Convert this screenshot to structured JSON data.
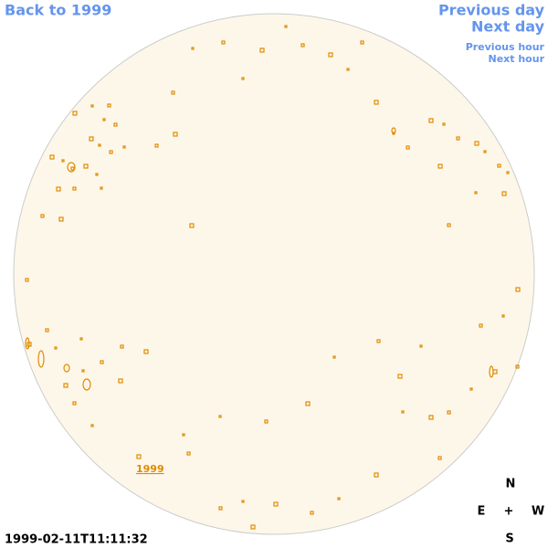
{
  "nav": {
    "back": "Back to 1999",
    "previous_day": "Previous day",
    "next_day": "Next day",
    "previous_hour": "Previous hour",
    "next_hour": "Next hour"
  },
  "image": {
    "label": "1999",
    "timestamp": "1999-02-11T11:11:32"
  },
  "compass": {
    "north": "N",
    "east": "E",
    "center": "+",
    "west": "W",
    "south": "S"
  }
}
